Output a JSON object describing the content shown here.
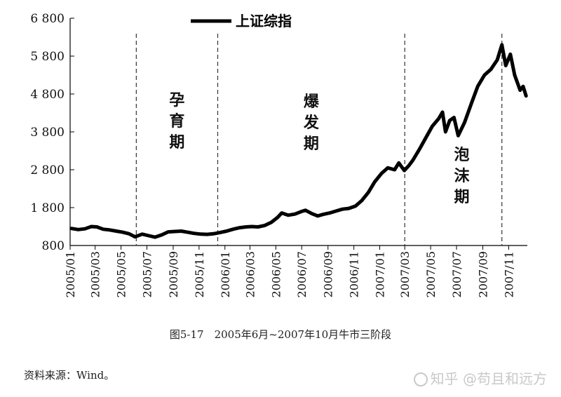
{
  "chart_data": {
    "type": "line",
    "title": "",
    "legend": {
      "placement": "top",
      "entries": [
        "上证综指"
      ]
    },
    "ylim": [
      800,
      6800
    ],
    "yticks": [
      800,
      1800,
      2800,
      3800,
      4800,
      5800,
      6800
    ],
    "ytick_labels": [
      "800",
      "1 800",
      "2 800",
      "3 800",
      "4 800",
      "5 800",
      "6 800"
    ],
    "xlim": [
      "2005-01",
      "2007-12"
    ],
    "xticks": [
      "2005/01",
      "2005/03",
      "2005/05",
      "2005/07",
      "2005/09",
      "2005/11",
      "2006/01",
      "2006/03",
      "2006/05",
      "2006/07",
      "2006/09",
      "2006/11",
      "2007/01",
      "2007/03",
      "2007/05",
      "2007/07",
      "2007/09",
      "2007/11"
    ],
    "grid": false,
    "series": [
      {
        "name": "上证综指",
        "color": "#000000",
        "points": [
          [
            "2005-01-04",
            1250
          ],
          [
            "2005-01-20",
            1220
          ],
          [
            "2005-02-05",
            1240
          ],
          [
            "2005-02-20",
            1300
          ],
          [
            "2005-03-05",
            1290
          ],
          [
            "2005-03-20",
            1230
          ],
          [
            "2005-04-05",
            1210
          ],
          [
            "2005-04-20",
            1180
          ],
          [
            "2005-05-05",
            1150
          ],
          [
            "2005-05-20",
            1110
          ],
          [
            "2005-06-03",
            1030
          ],
          [
            "2005-06-20",
            1100
          ],
          [
            "2005-07-05",
            1060
          ],
          [
            "2005-07-20",
            1020
          ],
          [
            "2005-08-05",
            1080
          ],
          [
            "2005-08-20",
            1160
          ],
          [
            "2005-09-05",
            1170
          ],
          [
            "2005-09-20",
            1180
          ],
          [
            "2005-10-05",
            1150
          ],
          [
            "2005-10-20",
            1120
          ],
          [
            "2005-11-05",
            1100
          ],
          [
            "2005-11-20",
            1095
          ],
          [
            "2005-12-05",
            1110
          ],
          [
            "2005-12-20",
            1140
          ],
          [
            "2006-01-05",
            1180
          ],
          [
            "2006-01-20",
            1230
          ],
          [
            "2006-02-05",
            1270
          ],
          [
            "2006-02-20",
            1290
          ],
          [
            "2006-03-05",
            1300
          ],
          [
            "2006-03-20",
            1290
          ],
          [
            "2006-04-05",
            1330
          ],
          [
            "2006-04-20",
            1410
          ],
          [
            "2006-05-05",
            1540
          ],
          [
            "2006-05-15",
            1660
          ],
          [
            "2006-05-30",
            1600
          ],
          [
            "2006-06-15",
            1630
          ],
          [
            "2006-07-01",
            1700
          ],
          [
            "2006-07-10",
            1730
          ],
          [
            "2006-07-25",
            1640
          ],
          [
            "2006-08-08",
            1580
          ],
          [
            "2006-08-20",
            1620
          ],
          [
            "2006-09-05",
            1660
          ],
          [
            "2006-09-20",
            1710
          ],
          [
            "2006-10-05",
            1760
          ],
          [
            "2006-10-20",
            1780
          ],
          [
            "2006-11-05",
            1840
          ],
          [
            "2006-11-20",
            1990
          ],
          [
            "2006-12-05",
            2200
          ],
          [
            "2006-12-20",
            2480
          ],
          [
            "2007-01-05",
            2700
          ],
          [
            "2007-01-20",
            2850
          ],
          [
            "2007-02-05",
            2800
          ],
          [
            "2007-02-15",
            2980
          ],
          [
            "2007-02-28",
            2780
          ],
          [
            "2007-03-10",
            2900
          ],
          [
            "2007-03-20",
            3050
          ],
          [
            "2007-04-05",
            3350
          ],
          [
            "2007-04-20",
            3650
          ],
          [
            "2007-05-05",
            3950
          ],
          [
            "2007-05-20",
            4150
          ],
          [
            "2007-05-29",
            4320
          ],
          [
            "2007-06-05",
            3800
          ],
          [
            "2007-06-15",
            4100
          ],
          [
            "2007-06-25",
            4180
          ],
          [
            "2007-07-05",
            3700
          ],
          [
            "2007-07-20",
            4050
          ],
          [
            "2007-08-05",
            4550
          ],
          [
            "2007-08-20",
            5000
          ],
          [
            "2007-09-05",
            5300
          ],
          [
            "2007-09-20",
            5450
          ],
          [
            "2007-10-05",
            5700
          ],
          [
            "2007-10-16",
            6100
          ],
          [
            "2007-10-25",
            5550
          ],
          [
            "2007-11-05",
            5850
          ],
          [
            "2007-11-15",
            5300
          ],
          [
            "2007-11-28",
            4900
          ],
          [
            "2007-12-05",
            5000
          ],
          [
            "2007-12-12",
            4750
          ]
        ]
      }
    ],
    "phase_dividers": [
      "2005-06-06",
      "2005-12-15",
      "2007-03-01",
      "2007-10-16"
    ],
    "phases": [
      {
        "label": "孕育期",
        "start": "2005-06-06",
        "end": "2005-12-15"
      },
      {
        "label": "爆发期",
        "start": "2005-12-15",
        "end": "2007-03-01"
      },
      {
        "label": "泡沫期",
        "start": "2007-03-01",
        "end": "2007-10-16"
      }
    ]
  },
  "caption": "图5-17　2005年6月~2007年10月牛市三阶段",
  "source": "资料来源：Wind。",
  "watermark": "知乎 @苟且和远方"
}
